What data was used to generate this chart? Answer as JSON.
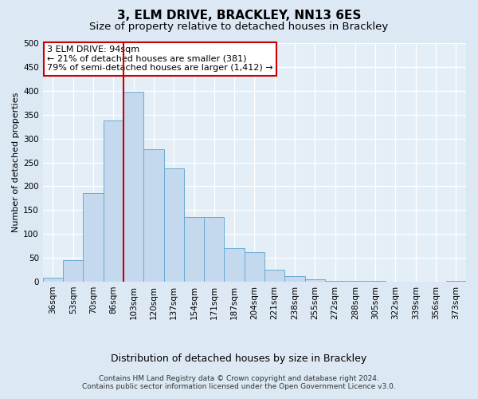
{
  "title": "3, ELM DRIVE, BRACKLEY, NN13 6ES",
  "subtitle": "Size of property relative to detached houses in Brackley",
  "xlabel": "Distribution of detached houses by size in Brackley",
  "ylabel": "Number of detached properties",
  "bar_values": [
    8,
    46,
    185,
    338,
    398,
    277,
    238,
    135,
    135,
    70,
    62,
    25,
    12,
    5,
    2,
    1,
    1,
    0,
    0,
    0,
    2
  ],
  "x_labels": [
    "36sqm",
    "53sqm",
    "70sqm",
    "86sqm",
    "103sqm",
    "120sqm",
    "137sqm",
    "154sqm",
    "171sqm",
    "187sqm",
    "204sqm",
    "221sqm",
    "238sqm",
    "255sqm",
    "272sqm",
    "288sqm",
    "305sqm",
    "322sqm",
    "339sqm",
    "356sqm",
    "373sqm"
  ],
  "bar_color": "#c5d9ee",
  "bar_edge_color": "#6aaad4",
  "vline_color": "#cc0000",
  "vline_position": 3.5,
  "annotation_text": "3 ELM DRIVE: 94sqm\n← 21% of detached houses are smaller (381)\n79% of semi-detached houses are larger (1,412) →",
  "annotation_box_facecolor": "#ffffff",
  "annotation_box_edgecolor": "#cc0000",
  "ylim": [
    0,
    500
  ],
  "yticks": [
    0,
    50,
    100,
    150,
    200,
    250,
    300,
    350,
    400,
    450,
    500
  ],
  "fig_bg_color": "#dce8f4",
  "plot_bg_color": "#e4eef7",
  "grid_color": "#ffffff",
  "footer_line1": "Contains HM Land Registry data © Crown copyright and database right 2024.",
  "footer_line2": "Contains public sector information licensed under the Open Government Licence v3.0.",
  "title_fontsize": 11,
  "subtitle_fontsize": 9.5,
  "xlabel_fontsize": 9,
  "ylabel_fontsize": 8,
  "tick_fontsize": 7.5,
  "annotation_fontsize": 8,
  "footer_fontsize": 6.5
}
